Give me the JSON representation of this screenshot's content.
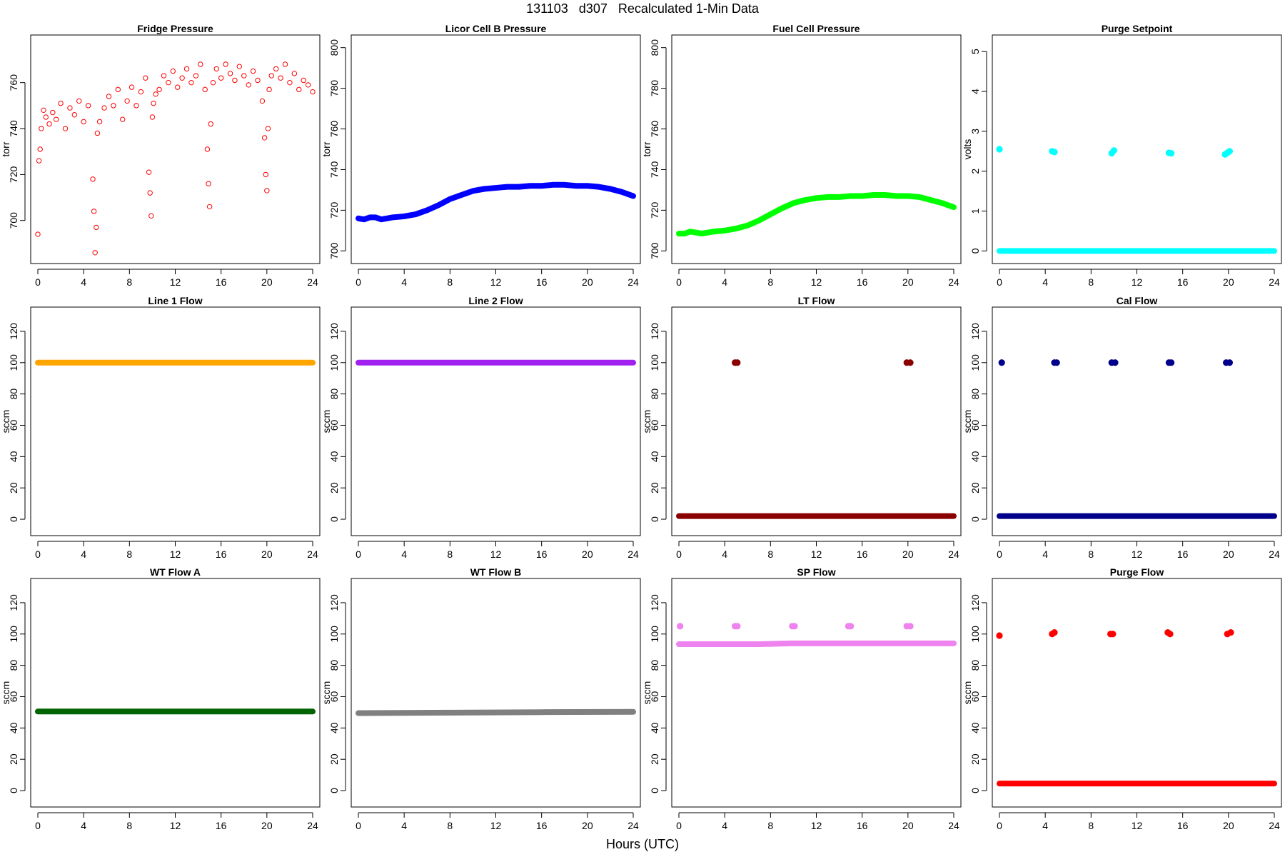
{
  "figure": {
    "title": "131103   d307   Recalculated 1-Min Data",
    "x_label": "Hours (UTC)"
  },
  "chart_data": [
    {
      "type": "scatter",
      "title": "Fridge Pressure",
      "ylabel": "torr",
      "color": "#ff0000",
      "xlim": [
        0,
        24
      ],
      "ylim": [
        685,
        777
      ],
      "xticks": [
        0,
        4,
        8,
        12,
        16,
        20,
        24
      ],
      "yticks": [
        700,
        720,
        740,
        760
      ],
      "marker": "open-circle",
      "series": [
        {
          "x": [
            0.0,
            0.1,
            0.2,
            0.3,
            0.5,
            0.7,
            1.0,
            1.3,
            1.6,
            2.0,
            2.4,
            2.8,
            3.2,
            3.6,
            4.0,
            4.4,
            4.8,
            4.9,
            5.0,
            5.1,
            5.2,
            5.4,
            5.8,
            6.2,
            6.6,
            7.0,
            7.4,
            7.8,
            8.2,
            8.6,
            9.0,
            9.4,
            9.7,
            9.8,
            9.9,
            10.0,
            10.1,
            10.3,
            10.6,
            11.0,
            11.4,
            11.8,
            12.2,
            12.6,
            13.0,
            13.4,
            13.8,
            14.2,
            14.6,
            14.8,
            14.9,
            15.0,
            15.1,
            15.3,
            15.6,
            16.0,
            16.4,
            16.8,
            17.2,
            17.6,
            18.0,
            18.4,
            18.8,
            19.2,
            19.6,
            19.8,
            19.9,
            20.0,
            20.1,
            20.2,
            20.4,
            20.8,
            21.2,
            21.6,
            22.0,
            22.4,
            22.8,
            23.2,
            23.6,
            24.0
          ],
          "y": [
            694,
            726,
            731,
            740,
            748,
            745,
            742,
            747,
            744,
            751,
            740,
            749,
            746,
            752,
            743,
            750,
            718,
            704,
            686,
            697,
            738,
            743,
            749,
            754,
            750,
            757,
            744,
            752,
            758,
            750,
            756,
            762,
            721,
            712,
            702,
            745,
            751,
            755,
            757,
            763,
            760,
            765,
            758,
            762,
            766,
            760,
            763,
            768,
            757,
            731,
            716,
            706,
            742,
            760,
            766,
            762,
            768,
            764,
            761,
            767,
            763,
            759,
            765,
            761,
            752,
            736,
            720,
            713,
            740,
            757,
            763,
            766,
            762,
            768,
            760,
            764,
            757,
            761,
            759,
            756
          ]
        }
      ]
    },
    {
      "type": "scatter",
      "title": "Licor Cell B Pressure",
      "ylabel": "torr",
      "color": "#0000ff",
      "xlim": [
        0,
        24
      ],
      "ylim": [
        698,
        802
      ],
      "xticks": [
        0,
        4,
        8,
        12,
        16,
        20,
        24
      ],
      "yticks": [
        700,
        720,
        740,
        760,
        780,
        800
      ],
      "marker": "filled-line",
      "series": [
        {
          "x": [
            0,
            0.5,
            1,
            1.5,
            2,
            2.5,
            3,
            4,
            5,
            6,
            7,
            8,
            9,
            10,
            11,
            12,
            13,
            14,
            15,
            16,
            17,
            18,
            19,
            20,
            21,
            22,
            23,
            24
          ],
          "y": [
            716,
            715.5,
            716.5,
            716.5,
            715.5,
            716,
            716.5,
            717,
            718,
            720,
            722.5,
            725.5,
            727.5,
            729.5,
            730.5,
            731,
            731.5,
            731.5,
            732,
            732,
            732.5,
            732.5,
            732,
            732,
            731.5,
            730.5,
            729,
            727
          ]
        }
      ]
    },
    {
      "type": "scatter",
      "title": "Fuel Cell Pressure",
      "ylabel": "torr",
      "color": "#00ff00",
      "xlim": [
        0,
        24
      ],
      "ylim": [
        698,
        802
      ],
      "xticks": [
        0,
        4,
        8,
        12,
        16,
        20,
        24
      ],
      "yticks": [
        700,
        720,
        740,
        760,
        780,
        800
      ],
      "marker": "filled-line",
      "series": [
        {
          "x": [
            0,
            0.5,
            1,
            1.5,
            2,
            2.5,
            3,
            4,
            5,
            6,
            7,
            8,
            9,
            10,
            11,
            12,
            13,
            14,
            15,
            16,
            17,
            18,
            19,
            20,
            21,
            22,
            23,
            24
          ],
          "y": [
            708.5,
            708.5,
            709.5,
            709,
            708.5,
            709,
            709.5,
            710,
            711,
            712.5,
            715,
            718,
            721,
            723.5,
            725,
            726,
            726.5,
            726.5,
            727,
            727,
            727.5,
            727.5,
            727,
            727,
            726.5,
            725,
            723.5,
            721.5
          ]
        }
      ]
    },
    {
      "type": "scatter",
      "title": "Purge Setpoint",
      "ylabel": "volts",
      "color": "#00ffff",
      "xlim": [
        0,
        24
      ],
      "ylim": [
        -0.1,
        5.2
      ],
      "xticks": [
        0,
        4,
        8,
        12,
        16,
        20,
        24
      ],
      "yticks": [
        0,
        1,
        2,
        3,
        4,
        5
      ],
      "marker": "filled-line",
      "series": [
        {
          "x": [
            0,
            24
          ],
          "y": [
            0,
            0
          ]
        },
        {
          "x": [
            0.0,
            4.6,
            4.8,
            9.8,
            10.0,
            14.8,
            15.0,
            19.7,
            19.9,
            20.1
          ],
          "y": [
            2.55,
            2.5,
            2.48,
            2.45,
            2.52,
            2.46,
            2.45,
            2.42,
            2.46,
            2.5
          ],
          "marker": "blob"
        }
      ]
    },
    {
      "type": "scatter",
      "title": "Line 1 Flow",
      "ylabel": "sccm",
      "color": "#ffa500",
      "xlim": [
        0,
        24
      ],
      "ylim": [
        -5,
        130
      ],
      "xticks": [
        0,
        4,
        8,
        12,
        16,
        20,
        24
      ],
      "yticks": [
        0,
        20,
        40,
        60,
        80,
        100,
        120
      ],
      "marker": "filled-line",
      "series": [
        {
          "x": [
            0,
            24
          ],
          "y": [
            100,
            100
          ]
        }
      ]
    },
    {
      "type": "scatter",
      "title": "Line 2 Flow",
      "ylabel": "sccm",
      "color": "#a020f0",
      "xlim": [
        0,
        24
      ],
      "ylim": [
        -5,
        130
      ],
      "xticks": [
        0,
        4,
        8,
        12,
        16,
        20,
        24
      ],
      "yticks": [
        0,
        20,
        40,
        60,
        80,
        100,
        120
      ],
      "marker": "filled-line",
      "series": [
        {
          "x": [
            0,
            24
          ],
          "y": [
            100,
            100
          ]
        }
      ]
    },
    {
      "type": "scatter",
      "title": "LT Flow",
      "ylabel": "sccm",
      "color": "#8b0000",
      "xlim": [
        0,
        24
      ],
      "ylim": [
        -5,
        130
      ],
      "xticks": [
        0,
        4,
        8,
        12,
        16,
        20,
        24
      ],
      "yticks": [
        0,
        20,
        40,
        60,
        80,
        100,
        120
      ],
      "marker": "filled-line",
      "series": [
        {
          "x": [
            0,
            24
          ],
          "y": [
            2,
            2
          ]
        },
        {
          "x": [
            4.9,
            5.1,
            19.9,
            20.2
          ],
          "y": [
            100,
            100,
            100,
            100
          ],
          "marker": "blob"
        }
      ]
    },
    {
      "type": "scatter",
      "title": "Cal Flow",
      "ylabel": "sccm",
      "color": "#00008b",
      "xlim": [
        0,
        24
      ],
      "ylim": [
        -5,
        130
      ],
      "xticks": [
        0,
        4,
        8,
        12,
        16,
        20,
        24
      ],
      "yticks": [
        0,
        20,
        40,
        60,
        80,
        100,
        120
      ],
      "marker": "filled-line",
      "series": [
        {
          "x": [
            0,
            24
          ],
          "y": [
            2,
            2
          ]
        },
        {
          "x": [
            0.2,
            4.8,
            5.0,
            9.8,
            10.1,
            14.8,
            15.0,
            19.8,
            20.1
          ],
          "y": [
            100,
            100,
            100,
            100,
            100,
            100,
            100,
            100,
            100
          ],
          "marker": "blob"
        }
      ]
    },
    {
      "type": "scatter",
      "title": "WT Flow A",
      "ylabel": "sccm",
      "color": "#006400",
      "xlim": [
        0,
        24
      ],
      "ylim": [
        -5,
        130
      ],
      "xticks": [
        0,
        4,
        8,
        12,
        16,
        20,
        24
      ],
      "yticks": [
        0,
        20,
        40,
        60,
        80,
        100,
        120
      ],
      "marker": "filled-line",
      "series": [
        {
          "x": [
            0,
            24
          ],
          "y": [
            50.5,
            50.5
          ]
        }
      ]
    },
    {
      "type": "scatter",
      "title": "WT Flow B",
      "ylabel": "sccm",
      "color": "#808080",
      "xlim": [
        0,
        24
      ],
      "ylim": [
        -5,
        130
      ],
      "xticks": [
        0,
        4,
        8,
        12,
        16,
        20,
        24
      ],
      "yticks": [
        0,
        20,
        40,
        60,
        80,
        100,
        120
      ],
      "marker": "filled-line",
      "series": [
        {
          "x": [
            0,
            8,
            16,
            24
          ],
          "y": [
            49.5,
            49.8,
            50.1,
            50.3
          ]
        }
      ]
    },
    {
      "type": "scatter",
      "title": "SP Flow",
      "ylabel": "sccm",
      "color": "#ee82ee",
      "xlim": [
        0,
        24
      ],
      "ylim": [
        -5,
        130
      ],
      "xticks": [
        0,
        4,
        8,
        12,
        16,
        20,
        24
      ],
      "yticks": [
        0,
        20,
        40,
        60,
        80,
        100,
        120
      ],
      "marker": "filled-line",
      "series": [
        {
          "x": [
            0,
            4.8,
            5.2,
            7,
            9.8,
            10.2,
            14.8,
            20,
            20.4,
            24
          ],
          "y": [
            93.5,
            93.5,
            93.5,
            93.5,
            94,
            94,
            94,
            94,
            94,
            94
          ]
        },
        {
          "x": [
            0.1,
            4.9,
            5.1,
            9.9,
            10.1,
            14.8,
            15.0,
            19.9,
            20.2
          ],
          "y": [
            105,
            105,
            105,
            105,
            105,
            105,
            105,
            105,
            105
          ],
          "marker": "blob"
        }
      ]
    },
    {
      "type": "scatter",
      "title": "Purge Flow",
      "ylabel": "sccm",
      "color": "#ff0000",
      "xlim": [
        0,
        24
      ],
      "ylim": [
        -5,
        130
      ],
      "xticks": [
        0,
        4,
        8,
        12,
        16,
        20,
        24
      ],
      "yticks": [
        0,
        20,
        40,
        60,
        80,
        100,
        120
      ],
      "marker": "filled-line",
      "series": [
        {
          "x": [
            0,
            4,
            8,
            12,
            16,
            20,
            24
          ],
          "y": [
            4.5,
            4.5,
            4.5,
            4.5,
            4.5,
            4.5,
            4.5
          ]
        },
        {
          "x": [
            0.0,
            4.6,
            4.8,
            9.7,
            9.9,
            14.7,
            14.9,
            19.9,
            20.2
          ],
          "y": [
            99,
            100,
            101,
            100,
            100,
            101,
            100,
            100,
            101
          ],
          "marker": "blob"
        }
      ]
    }
  ]
}
